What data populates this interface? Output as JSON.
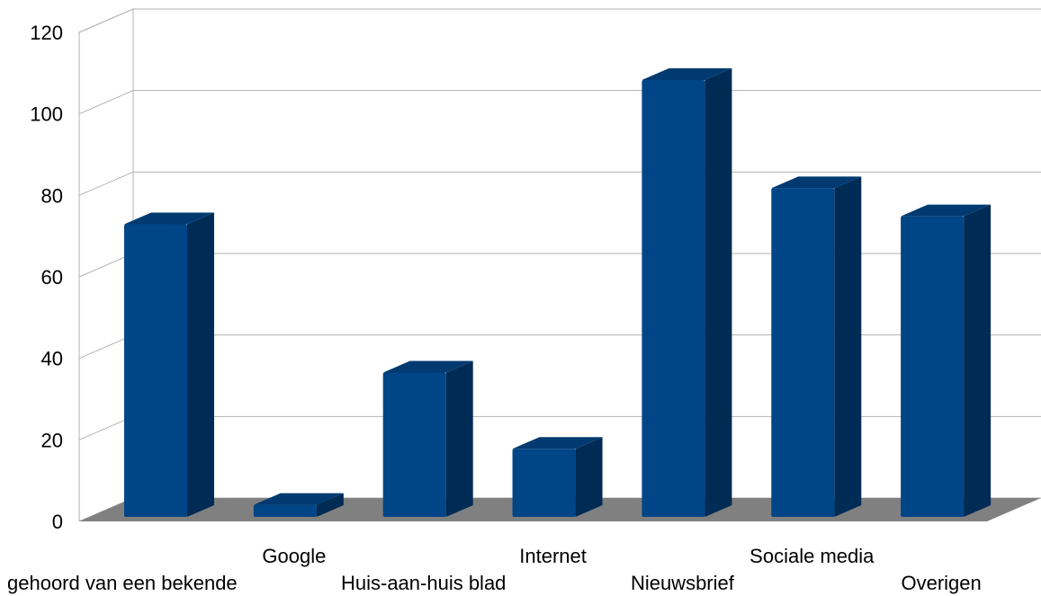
{
  "chart_data": {
    "type": "bar",
    "title": "",
    "xlabel": "",
    "ylabel": "",
    "ylim": [
      0,
      120
    ],
    "yticks": [
      0,
      20,
      40,
      60,
      80,
      100,
      120
    ],
    "grid": true,
    "legend": "none",
    "style": "3d-column",
    "colors": {
      "bar_front": "#004586",
      "bar_side": "#002b55",
      "bar_top": "#003a70",
      "floor": "#808080",
      "grid": "#b3b3b3"
    },
    "categories": [
      "gehoord van een bekende",
      "Google",
      "Huis-aan-huis blad",
      "Internet",
      "Nieuwsbrief",
      "Sociale media",
      "Overigen"
    ],
    "values": [
      73,
      3,
      36,
      17,
      109,
      82,
      75
    ]
  }
}
